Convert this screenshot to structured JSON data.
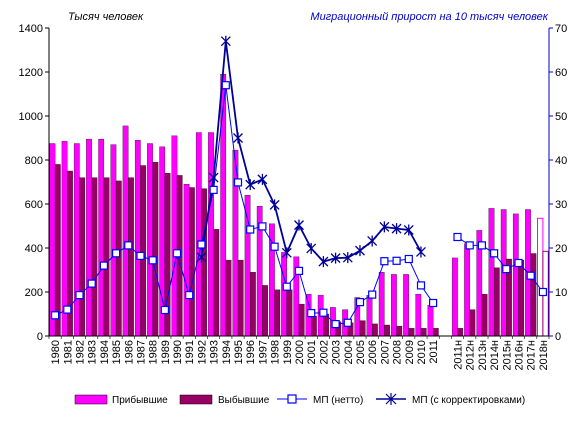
{
  "chart_data": {
    "type": "bar",
    "left_axis_label": "Тысяч человек",
    "right_axis_label": "Миграционный прирост на 10 тысяч человек",
    "categories": [
      "1980",
      "1981",
      "1982",
      "1983",
      "1984",
      "1985",
      "1986",
      "1987",
      "1988",
      "1989",
      "1990",
      "1991",
      "1992",
      "1993",
      "1994",
      "1995",
      "1996",
      "1997",
      "1998",
      "1999",
      "2000",
      "2001",
      "2002",
      "2003",
      "2004",
      "2005",
      "2006",
      "2007",
      "2008",
      "2009",
      "2010",
      "2011",
      "",
      "2011н",
      "2012н",
      "2013н",
      "2014н",
      "2015н",
      "2016н",
      "2017н",
      "2018н"
    ],
    "ylim_left": [
      0,
      1400
    ],
    "yticks_left": [
      0,
      200,
      400,
      600,
      800,
      1000,
      1200,
      1400
    ],
    "ylim_right": [
      0,
      70
    ],
    "yticks_right": [
      0,
      10,
      20,
      30,
      40,
      50,
      60,
      70
    ],
    "grid": false,
    "legend_position": "bottom",
    "series": [
      {
        "name": "Прибывшие",
        "kind": "bar",
        "axis": "left",
        "color": "#ff00ff",
        "values": [
          875,
          885,
          875,
          895,
          895,
          870,
          955,
          890,
          875,
          860,
          910,
          690,
          925,
          925,
          1190,
          845,
          640,
          590,
          510,
          380,
          360,
          190,
          185,
          130,
          120,
          175,
          185,
          290,
          280,
          280,
          190,
          140,
          null,
          355,
          420,
          480,
          580,
          575,
          555,
          575,
          535
        ]
      },
      {
        "name": "Выбывшие",
        "kind": "bar",
        "axis": "left",
        "color": "#990066",
        "values": [
          780,
          750,
          720,
          720,
          720,
          705,
          720,
          775,
          790,
          740,
          730,
          675,
          670,
          485,
          345,
          345,
          290,
          230,
          210,
          210,
          145,
          90,
          100,
          65,
          60,
          70,
          55,
          50,
          45,
          35,
          35,
          35,
          null,
          35,
          120,
          190,
          310,
          350,
          345,
          375,
          385
        ]
      },
      {
        "name": "МП (нетто)",
        "kind": "line",
        "axis": "right",
        "color": "#0000ff",
        "marker": "square",
        "values": [
          4.7,
          6,
          9.3,
          11.9,
          16,
          18.8,
          20.6,
          18.2,
          17.2,
          5.9,
          18.8,
          9.3,
          20.8,
          33.2,
          57,
          34.9,
          24.2,
          24.9,
          20.3,
          11.2,
          14.8,
          5.2,
          5.3,
          2.7,
          3,
          7.7,
          9.4,
          17,
          17.1,
          17.5,
          11.5,
          7.5,
          null,
          22.5,
          20.6,
          20.6,
          18.8,
          15.2,
          16.6,
          13.7,
          10
        ]
      },
      {
        "name": "МП  (с корректировками)",
        "kind": "line",
        "axis": "right",
        "color": "#000099",
        "marker": "star",
        "values": [
          null,
          null,
          null,
          null,
          null,
          null,
          null,
          null,
          null,
          null,
          null,
          null,
          17.9,
          36,
          67,
          45,
          34.4,
          35.6,
          29.8,
          18.9,
          25.2,
          19.9,
          16.9,
          17.7,
          17.8,
          19.4,
          21.6,
          24.8,
          24.4,
          24.1,
          19.1,
          null,
          null,
          null,
          null,
          null,
          null,
          null,
          null,
          null,
          null
        ]
      }
    ],
    "notes": [
      "hollow last bars (2018н) are drawn as outlined rectangles"
    ]
  }
}
